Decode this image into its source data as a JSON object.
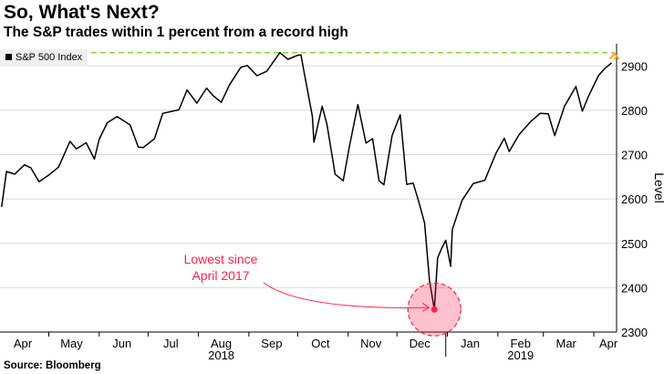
{
  "title": "So, What's Next?",
  "subtitle": "The S&P trades within 1 percent from a record high",
  "source": "Source: Bloomberg",
  "colors": {
    "line": "#000000",
    "record_line": "#8fd43a",
    "arrow": "#f5a623",
    "annotation": "#ff1f4b"
  },
  "icons": {
    "up_arrow": "up-arrow-icon"
  },
  "chart_data": {
    "type": "line",
    "series": [
      {
        "name": "S&P 500 Index",
        "x": [
          "2018-04-02",
          "2018-04-05",
          "2018-04-10",
          "2018-04-16",
          "2018-04-20",
          "2018-04-25",
          "2018-05-01",
          "2018-05-07",
          "2018-05-14",
          "2018-05-18",
          "2018-05-24",
          "2018-05-29",
          "2018-06-01",
          "2018-06-06",
          "2018-06-12",
          "2018-06-20",
          "2018-06-25",
          "2018-06-28",
          "2018-07-05",
          "2018-07-10",
          "2018-07-16",
          "2018-07-20",
          "2018-07-25",
          "2018-07-31",
          "2018-08-06",
          "2018-08-10",
          "2018-08-15",
          "2018-08-20",
          "2018-08-27",
          "2018-08-31",
          "2018-09-06",
          "2018-09-12",
          "2018-09-20",
          "2018-09-25",
          "2018-10-01",
          "2018-10-03",
          "2018-10-05",
          "2018-10-10",
          "2018-10-11",
          "2018-10-16",
          "2018-10-19",
          "2018-10-24",
          "2018-10-29",
          "2018-11-02",
          "2018-11-07",
          "2018-11-12",
          "2018-11-16",
          "2018-11-20",
          "2018-11-23",
          "2018-11-28",
          "2018-12-03",
          "2018-12-07",
          "2018-12-11",
          "2018-12-14",
          "2018-12-18",
          "2018-12-21",
          "2018-12-24",
          "2018-12-26",
          "2018-12-28",
          "2018-12-31",
          "2019-01-03",
          "2019-01-04",
          "2019-01-10",
          "2019-01-17",
          "2019-01-24",
          "2019-01-31",
          "2019-02-05",
          "2019-02-08",
          "2019-02-14",
          "2019-02-21",
          "2019-02-27",
          "2019-03-04",
          "2019-03-08",
          "2019-03-14",
          "2019-03-21",
          "2019-03-25",
          "2019-03-29",
          "2019-04-04",
          "2019-04-08",
          "2019-04-12"
        ],
        "y": [
          2582,
          2662,
          2656,
          2677,
          2670,
          2639,
          2654,
          2672,
          2730,
          2713,
          2727,
          2690,
          2735,
          2772,
          2786,
          2767,
          2717,
          2716,
          2736,
          2793,
          2798,
          2801,
          2846,
          2816,
          2850,
          2833,
          2818,
          2857,
          2897,
          2901,
          2878,
          2888,
          2930,
          2915,
          2924,
          2925,
          2885,
          2786,
          2728,
          2809,
          2768,
          2656,
          2641,
          2723,
          2813,
          2726,
          2736,
          2641,
          2632,
          2743,
          2790,
          2633,
          2636,
          2599,
          2546,
          2416,
          2351,
          2467,
          2485,
          2507,
          2448,
          2531,
          2597,
          2635,
          2642,
          2704,
          2737,
          2707,
          2745,
          2774,
          2793,
          2792,
          2743,
          2809,
          2854,
          2798,
          2834,
          2879,
          2895,
          2907
        ]
      }
    ],
    "annotations": [
      {
        "text_line1": "Lowest since",
        "text_line2": "April 2017",
        "x": "2018-12-24",
        "y": 2351
      }
    ],
    "reference_line": {
      "y": 2930
    },
    "x_ticks": [
      {
        "date": "2018-04-15",
        "label": "Apr"
      },
      {
        "date": "2018-05-15",
        "label": "May"
      },
      {
        "date": "2018-06-15",
        "label": "Jun"
      },
      {
        "date": "2018-07-15",
        "label": "Jul"
      },
      {
        "date": "2018-08-15",
        "label": "Aug"
      },
      {
        "date": "2018-09-15",
        "label": "Sep"
      },
      {
        "date": "2018-10-15",
        "label": "Oct"
      },
      {
        "date": "2018-11-15",
        "label": "Nov"
      },
      {
        "date": "2018-12-15",
        "label": "Dec"
      },
      {
        "date": "2019-01-15",
        "label": "Jan"
      },
      {
        "date": "2019-02-15",
        "label": "Feb"
      },
      {
        "date": "2019-03-15",
        "label": "Mar"
      },
      {
        "date": "2019-04-10",
        "label": "Apr"
      }
    ],
    "year_labels": [
      {
        "date": "2018-08-15",
        "label": "2018"
      },
      {
        "date": "2019-02-15",
        "label": "2019"
      }
    ],
    "year_divider": "2018-12-31",
    "y_ticks": [
      2300,
      2400,
      2500,
      2600,
      2700,
      2800,
      2900
    ],
    "ylabel": "Level",
    "xlabel": "",
    "xlim": [
      "2018-04-01",
      "2019-04-15"
    ],
    "ylim": [
      2300,
      2950
    ],
    "legend_position": "top-left",
    "grid": "horizontal"
  }
}
